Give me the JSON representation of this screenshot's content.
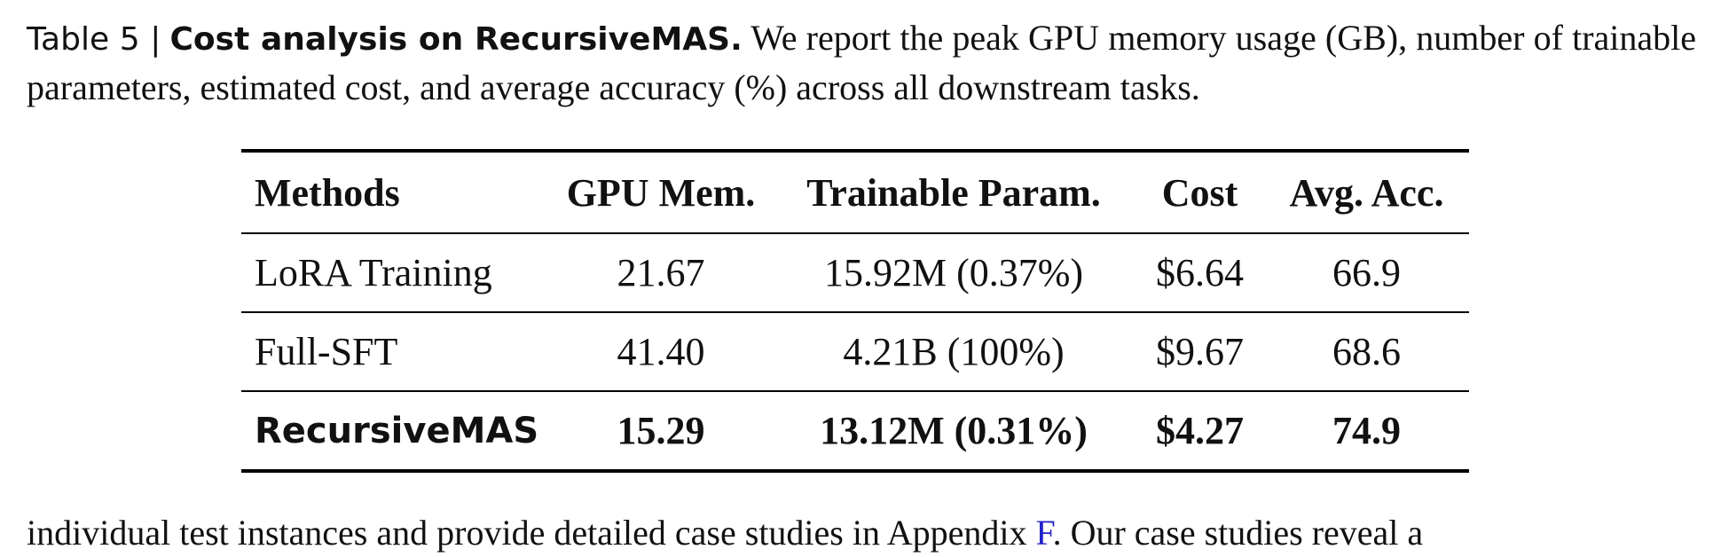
{
  "caption": {
    "label": "Table 5 |",
    "title": "Cost analysis on RecursiveMAS.",
    "text": "We report the peak GPU memory usage (GB), number of trainable parameters, estimated cost, and average accuracy (%) across all downstream tasks."
  },
  "table": {
    "headers": [
      "Methods",
      "GPU Mem.",
      "Trainable Param.",
      "Cost",
      "Avg. Acc."
    ],
    "rows": [
      [
        "LoRA Training",
        "21.67",
        "15.92M (0.37%)",
        "$6.64",
        "66.9"
      ],
      [
        "Full-SFT",
        "41.40",
        "4.21B (100%)",
        "$9.67",
        "68.6"
      ],
      [
        "RecursiveMAS",
        "15.29",
        "13.12M (0.31%)",
        "$4.27",
        "74.9"
      ]
    ]
  },
  "paragraph": {
    "before": "individual test instances and provide detailed case studies in Appendix ",
    "link": "F",
    "after": ". Our case studies reveal a"
  }
}
